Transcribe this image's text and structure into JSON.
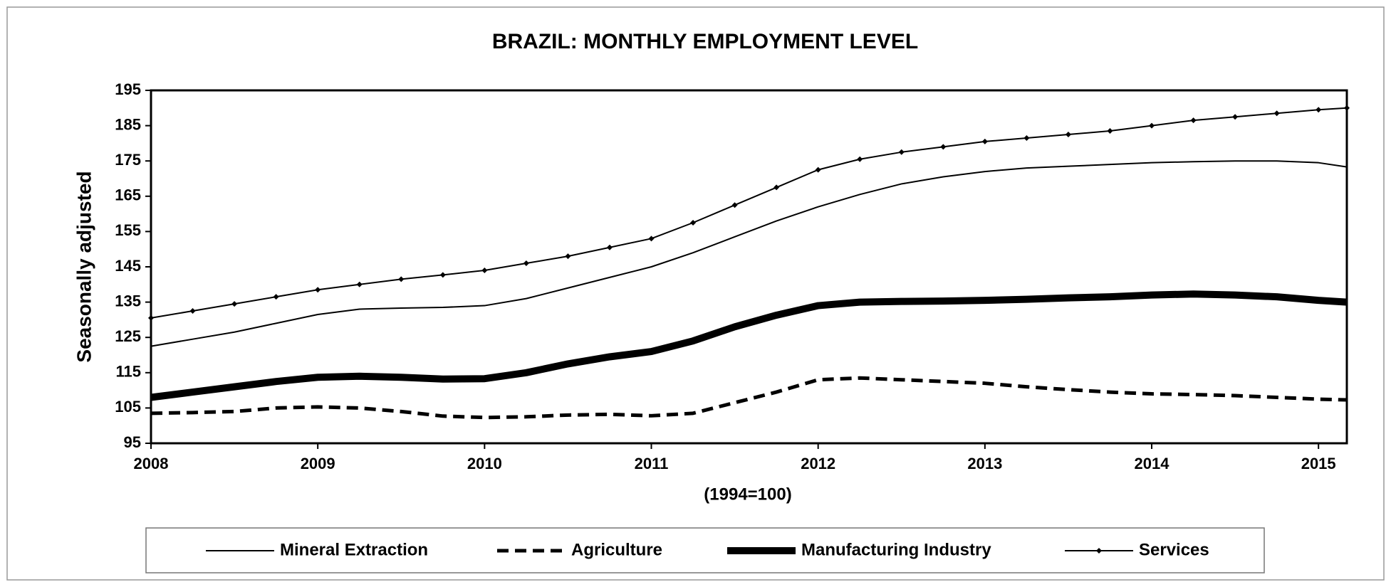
{
  "chart_data": {
    "type": "line",
    "title": "BRAZIL: MONTHLY EMPLOYMENT LEVEL",
    "y_label": "Seasonally adjusted",
    "x_label": "(1994=100)",
    "x": [
      2008,
      2008.25,
      2008.5,
      2008.75,
      2009,
      2009.25,
      2009.5,
      2009.75,
      2010,
      2010.25,
      2010.5,
      2010.75,
      2011,
      2011.25,
      2011.5,
      2011.75,
      2012,
      2012.25,
      2012.5,
      2012.75,
      2013,
      2013.25,
      2013.5,
      2013.75,
      2014,
      2014.25,
      2014.5,
      2014.75,
      2015,
      2015.17
    ],
    "xlim": [
      2008,
      2015.17
    ],
    "xticks": [
      2008,
      2009,
      2010,
      2011,
      2012,
      2013,
      2014,
      2015
    ],
    "ylim": [
      95,
      195
    ],
    "yticks": [
      95,
      105,
      115,
      125,
      135,
      145,
      155,
      165,
      175,
      185,
      195
    ],
    "legend": "bottom",
    "series": [
      {
        "name": "Mineral Extraction",
        "color": "#000000",
        "line_width": 2,
        "dashed": false,
        "marker": false,
        "values": [
          122.5,
          124.5,
          126.5,
          129,
          131.5,
          133,
          133.3,
          133.5,
          134,
          136,
          139,
          142,
          145,
          149,
          153.5,
          158,
          162,
          165.5,
          168.5,
          170.5,
          172,
          173,
          173.5,
          174,
          174.5,
          174.8,
          175,
          175,
          174.5,
          173.3
        ]
      },
      {
        "name": "Agriculture",
        "color": "#000000",
        "line_width": 5,
        "dashed": true,
        "marker": false,
        "values": [
          103.5,
          103.7,
          104,
          105,
          105.3,
          105,
          104,
          102.7,
          102.3,
          102.5,
          103,
          103.2,
          102.8,
          103.5,
          106.5,
          109.5,
          113,
          113.5,
          113,
          112.5,
          112,
          111,
          110.2,
          109.5,
          109,
          108.8,
          108.5,
          108,
          107.5,
          107.3
        ]
      },
      {
        "name": "Manufacturing Industry",
        "color": "#000000",
        "line_width": 10,
        "dashed": false,
        "marker": false,
        "values": [
          108,
          109.5,
          111,
          112.5,
          113.7,
          114,
          113.7,
          113.2,
          113.3,
          115,
          117.5,
          119.5,
          121,
          124,
          128,
          131.3,
          134,
          135,
          135.2,
          135.3,
          135.5,
          135.8,
          136.2,
          136.5,
          137,
          137.3,
          137,
          136.5,
          135.5,
          135
        ]
      },
      {
        "name": "Services",
        "color": "#000000",
        "line_width": 2,
        "dashed": false,
        "marker": true,
        "values": [
          130.5,
          132.5,
          134.5,
          136.5,
          138.5,
          140,
          141.5,
          142.7,
          144,
          146,
          148,
          150.5,
          153,
          157.5,
          162.5,
          167.5,
          172.5,
          175.5,
          177.5,
          179,
          180.5,
          181.5,
          182.5,
          183.5,
          185,
          186.5,
          187.5,
          188.5,
          189.5,
          190
        ]
      }
    ]
  }
}
